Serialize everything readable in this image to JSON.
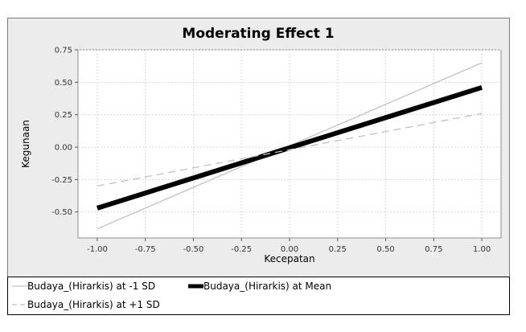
{
  "chart_data": {
    "type": "line",
    "title": "Moderating Effect 1",
    "xlabel": "Kecepatan",
    "ylabel": "Kegunaan",
    "xlim": [
      -1.1,
      1.1
    ],
    "ylim": [
      -0.7,
      0.75
    ],
    "x_ticks": [
      "-1.00",
      "-0.75",
      "-0.50",
      "-0.25",
      "0.00",
      "0.25",
      "0.50",
      "0.75",
      "1.00"
    ],
    "y_ticks": [
      "0.75",
      "0.50",
      "0.25",
      "0.00",
      "-0.25",
      "-0.50"
    ],
    "grid": true,
    "legend_position": "bottom",
    "series": [
      {
        "name": "Budaya_(Hirarkis) at -1 SD",
        "x": [
          -1.0,
          1.0
        ],
        "values": [
          -0.63,
          0.65
        ],
        "style": "thin",
        "color": "#c0c0c0"
      },
      {
        "name": "Budaya_(Hirarkis) at Mean",
        "x": [
          -1.0,
          1.0
        ],
        "values": [
          -0.47,
          0.46
        ],
        "style": "thick",
        "color": "#000000"
      },
      {
        "name": "Budaya_(Hirarkis) at +1 SD",
        "x": [
          -1.0,
          1.0
        ],
        "values": [
          -0.3,
          0.26
        ],
        "style": "dashed",
        "color": "#c0c0c0"
      }
    ]
  },
  "colors": {
    "outer_background": "#ececec",
    "plot_background": "#ffffff",
    "grid": "#d7d7d7"
  }
}
